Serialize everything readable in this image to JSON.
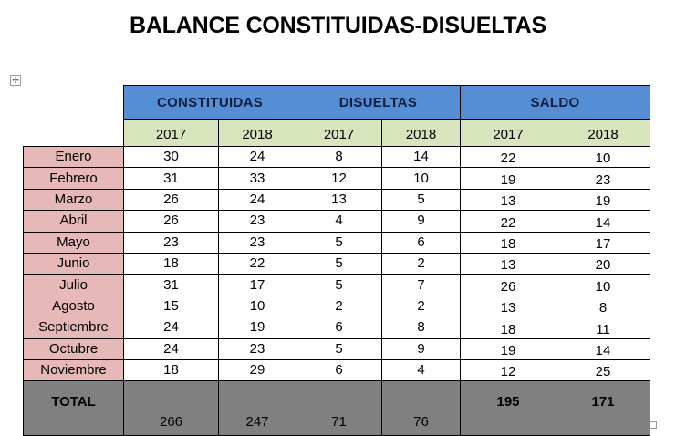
{
  "title": "BALANCE CONSTITUIDAS-DISUELTAS",
  "colors": {
    "header_blue": "#558ED5",
    "year_green": "#D7E4BC",
    "month_pink": "#E6B9B8",
    "total_gray": "#808080"
  },
  "icons": {
    "move": "table-move-handle-icon",
    "resize": "table-resize-handle-icon"
  },
  "groups": [
    "CONSTITUIDAS",
    "DISUELTAS",
    "SALDO"
  ],
  "years": [
    "2017",
    "2018",
    "2017",
    "2018",
    "2017",
    "2018"
  ],
  "rows": [
    {
      "month": "Enero",
      "values": [
        "30",
        "24",
        "8",
        "14",
        "22",
        "10"
      ]
    },
    {
      "month": "Febrero",
      "values": [
        "31",
        "33",
        "12",
        "10",
        "19",
        "23"
      ]
    },
    {
      "month": "Marzo",
      "values": [
        "26",
        "24",
        "13",
        "5",
        "13",
        "19"
      ]
    },
    {
      "month": "Abril",
      "values": [
        "26",
        "23",
        "4",
        "9",
        "22",
        "14"
      ]
    },
    {
      "month": "Mayo",
      "values": [
        "23",
        "23",
        "5",
        "6",
        "18",
        "17"
      ]
    },
    {
      "month": "Junio",
      "values": [
        "18",
        "22",
        "5",
        "2",
        "13",
        "20"
      ]
    },
    {
      "month": "Julio",
      "values": [
        "31",
        "17",
        "5",
        "7",
        "26",
        "10"
      ]
    },
    {
      "month": "Agosto",
      "values": [
        "15",
        "10",
        "2",
        "2",
        "13",
        "8"
      ]
    },
    {
      "month": "Septiembre",
      "values": [
        "24",
        "19",
        "6",
        "8",
        "18",
        "11"
      ]
    },
    {
      "month": "Octubre",
      "values": [
        "24",
        "23",
        "5",
        "9",
        "19",
        "14"
      ]
    },
    {
      "month": "Noviembre",
      "values": [
        "18",
        "29",
        "6",
        "4",
        "12",
        "25"
      ]
    }
  ],
  "total": {
    "label": "TOTAL",
    "values": [
      "266",
      "247",
      "71",
      "76",
      "195",
      "171"
    ]
  }
}
